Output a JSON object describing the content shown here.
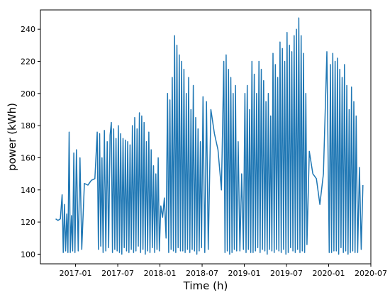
{
  "chart_data": {
    "type": "line",
    "xlabel": "Time (h)",
    "ylabel": "power (kWh)",
    "color": "#1f77b4",
    "xlim": [
      "2016-08",
      "2020-07"
    ],
    "xticks": [
      "2017-01",
      "2017-07",
      "2018-01",
      "2018-07",
      "2019-01",
      "2019-07",
      "2020-01",
      "2020-07"
    ],
    "ylim": [
      94,
      252
    ],
    "yticks": [
      100,
      120,
      140,
      160,
      180,
      200,
      220,
      240
    ],
    "x": [
      "2016-10",
      "2016-10",
      "2016-10",
      "2016-11",
      "2016-11",
      "2016-11",
      "2016-11",
      "2016-11",
      "2016-11",
      "2016-12",
      "2016-12",
      "2016-12",
      "2016-12",
      "2016-12",
      "2016-12",
      "2017-01",
      "2017-01",
      "2017-01",
      "2017-01",
      "2017-02",
      "2017-02",
      "2017-03",
      "2017-03",
      "2017-04",
      "2017-04",
      "2017-04",
      "2017-04",
      "2017-04",
      "2017-04",
      "2017-05",
      "2017-05",
      "2017-05",
      "2017-05",
      "2017-05",
      "2017-06",
      "2017-06",
      "2017-06",
      "2017-06",
      "2017-06",
      "2017-06",
      "2017-07",
      "2017-07",
      "2017-07",
      "2017-07",
      "2017-07",
      "2017-07",
      "2017-08",
      "2017-08",
      "2017-08",
      "2017-08",
      "2017-08",
      "2017-08",
      "2017-09",
      "2017-09",
      "2017-09",
      "2017-09",
      "2017-09",
      "2017-09",
      "2017-10",
      "2017-10",
      "2017-10",
      "2017-10",
      "2017-10",
      "2017-10",
      "2017-11",
      "2017-11",
      "2017-11",
      "2017-11",
      "2017-11",
      "2017-11",
      "2017-12",
      "2017-12",
      "2017-12",
      "2017-12",
      "2017-12",
      "2017-12",
      "2018-01",
      "2018-01",
      "2018-01",
      "2018-01",
      "2018-02",
      "2018-02",
      "2018-02",
      "2018-02",
      "2018-02",
      "2018-02",
      "2018-03",
      "2018-03",
      "2018-03",
      "2018-03",
      "2018-03",
      "2018-03",
      "2018-04",
      "2018-04",
      "2018-04",
      "2018-04",
      "2018-04",
      "2018-04",
      "2018-05",
      "2018-05",
      "2018-05",
      "2018-05",
      "2018-05",
      "2018-05",
      "2018-06",
      "2018-06",
      "2018-06",
      "2018-06",
      "2018-06",
      "2018-06",
      "2018-07",
      "2018-07",
      "2018-07",
      "2018-07",
      "2018-08",
      "2018-08",
      "2018-09",
      "2018-09",
      "2018-10",
      "2018-10",
      "2018-10",
      "2018-10",
      "2018-10",
      "2018-10",
      "2018-11",
      "2018-11",
      "2018-11",
      "2018-11",
      "2018-11",
      "2018-11",
      "2018-12",
      "2018-12",
      "2018-12",
      "2018-12",
      "2019-01",
      "2019-01",
      "2019-01",
      "2019-01",
      "2019-01",
      "2019-01",
      "2019-02",
      "2019-02",
      "2019-02",
      "2019-02",
      "2019-02",
      "2019-02",
      "2019-03",
      "2019-03",
      "2019-03",
      "2019-03",
      "2019-03",
      "2019-03",
      "2019-04",
      "2019-04",
      "2019-04",
      "2019-04",
      "2019-04",
      "2019-04",
      "2019-05",
      "2019-05",
      "2019-05",
      "2019-05",
      "2019-05",
      "2019-05",
      "2019-06",
      "2019-06",
      "2019-06",
      "2019-06",
      "2019-06",
      "2019-06",
      "2019-07",
      "2019-07",
      "2019-07",
      "2019-07",
      "2019-07",
      "2019-07",
      "2019-08",
      "2019-08",
      "2019-08",
      "2019-08",
      "2019-08",
      "2019-08",
      "2019-09",
      "2019-09",
      "2019-09",
      "2019-09",
      "2019-09",
      "2019-09",
      "2019-10",
      "2019-10",
      "2019-11",
      "2019-11",
      "2019-12",
      "2019-12",
      "2020-01",
      "2020-01",
      "2020-01",
      "2020-01",
      "2020-01",
      "2020-01",
      "2020-02",
      "2020-02",
      "2020-02",
      "2020-02",
      "2020-02",
      "2020-02",
      "2020-03",
      "2020-03",
      "2020-03",
      "2020-03",
      "2020-03",
      "2020-03",
      "2020-04",
      "2020-04",
      "2020-04",
      "2020-04",
      "2020-04",
      "2020-04",
      "2020-05",
      "2020-05",
      "2020-05",
      "2020-05"
    ],
    "values": [
      122,
      121,
      122,
      137,
      101,
      131,
      102,
      125,
      101,
      176,
      101,
      124,
      102,
      163,
      101,
      165,
      102,
      160,
      103,
      144,
      143,
      146,
      147,
      176,
      103,
      175,
      105,
      160,
      101,
      177,
      102,
      170,
      104,
      174,
      182,
      101,
      178,
      103,
      172,
      102,
      180,
      101,
      175,
      100,
      172,
      104,
      171,
      102,
      170,
      101,
      168,
      103,
      180,
      101,
      185,
      102,
      178,
      105,
      188,
      101,
      186,
      103,
      182,
      100,
      170,
      102,
      176,
      101,
      165,
      104,
      155,
      101,
      150,
      103,
      160,
      102,
      130,
      123,
      135,
      110,
      200,
      101,
      196,
      103,
      210,
      102,
      236,
      101,
      230,
      104,
      224,
      102,
      220,
      102,
      215,
      101,
      200,
      103,
      210,
      101,
      190,
      103,
      205,
      102,
      185,
      100,
      178,
      102,
      170,
      104,
      198,
      101,
      195,
      103,
      190,
      175,
      165,
      140,
      220,
      101,
      224,
      102,
      215,
      100,
      210,
      101,
      200,
      103,
      205,
      102,
      170,
      102,
      150,
      103,
      200,
      101,
      205,
      103,
      190,
      101,
      220,
      101,
      212,
      102,
      200,
      104,
      220,
      101,
      215,
      103,
      208,
      102,
      195,
      100,
      200,
      103,
      186,
      102,
      225,
      101,
      218,
      103,
      210,
      102,
      232,
      101,
      228,
      103,
      220,
      100,
      238,
      101,
      230,
      104,
      226,
      102,
      236,
      101,
      240,
      103,
      247,
      101,
      236,
      102,
      225,
      101,
      200,
      106,
      164,
      150,
      147,
      131,
      150,
      226,
      101,
      218,
      101,
      225,
      102,
      220,
      102,
      222,
      100,
      215,
      104,
      210,
      101,
      218,
      102,
      205,
      100,
      190,
      101,
      204,
      102,
      195,
      101,
      186,
      101,
      154,
      103,
      143
    ]
  }
}
